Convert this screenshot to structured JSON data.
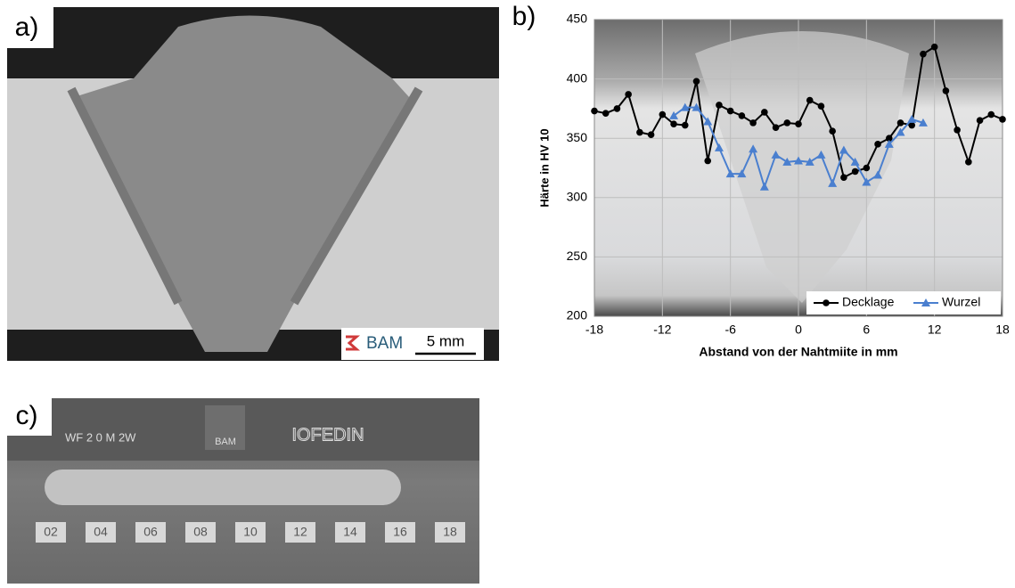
{
  "panel_a": {
    "label": "a)",
    "logo": "BAM",
    "scale_bar": "5 mm"
  },
  "panel_c": {
    "label": "c)",
    "marking": "WF 2 0   M   2W",
    "logo": "BAM",
    "stamp": "IOFEDIN",
    "plates": [
      "02",
      "04",
      "06",
      "08",
      "10",
      "12",
      "14",
      "16",
      "18"
    ]
  },
  "chart_data": {
    "type": "line",
    "panel_label": "b)",
    "x_label": "Abstand von der Nahtmiite in mm",
    "y_label": "Härte in HV 10",
    "xlim": [
      -18,
      18
    ],
    "xticks": [
      -18,
      -12,
      -6,
      0,
      6,
      12,
      18
    ],
    "ylim": [
      200,
      450
    ],
    "yticks": [
      200,
      250,
      300,
      350,
      400,
      450
    ],
    "grid": true,
    "legend": "bottom-right",
    "series": [
      {
        "name": "Decklage",
        "color": "#000000",
        "marker": "circle",
        "x": [
          -18,
          -17,
          -16,
          -15,
          -14,
          -13,
          -12,
          -11,
          -10,
          -9,
          -8,
          -7,
          -6,
          -5,
          -4,
          -3,
          -2,
          -1,
          0,
          1,
          2,
          3,
          4,
          5,
          6,
          7,
          8,
          9,
          10,
          11,
          12,
          13,
          14,
          15,
          16,
          17,
          18
        ],
        "values": [
          373,
          371,
          375,
          387,
          355,
          353,
          370,
          362,
          361,
          398,
          331,
          378,
          373,
          369,
          363,
          372,
          359,
          363,
          362,
          382,
          377,
          356,
          317,
          322,
          325,
          345,
          350,
          363,
          361,
          421,
          427,
          390,
          357,
          330,
          365,
          370,
          366
        ]
      },
      {
        "name": "Wurzel",
        "color": "#4a7fcf",
        "marker": "triangle",
        "x": [
          -11,
          -10,
          -9,
          -8,
          -7,
          -6,
          -5,
          -4,
          -3,
          -2,
          -1,
          0,
          1,
          2,
          3,
          4,
          5,
          6,
          7,
          8,
          9,
          10,
          11
        ],
        "values": [
          369,
          376,
          376,
          364,
          342,
          320,
          320,
          341,
          309,
          336,
          330,
          331,
          330,
          336,
          312,
          340,
          330,
          313,
          319,
          345,
          355,
          366,
          363
        ]
      }
    ]
  }
}
